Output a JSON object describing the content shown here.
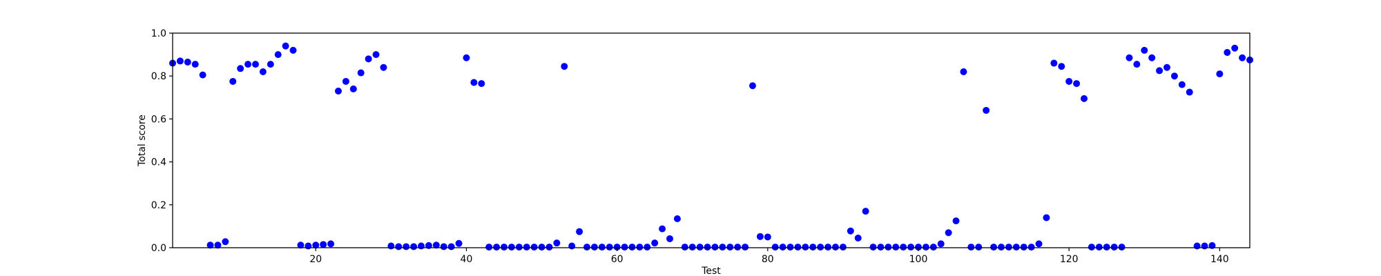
{
  "chart_data": {
    "type": "scatter",
    "title": "",
    "xlabel": "Test",
    "ylabel": "Total score",
    "xlim": [
      1,
      144
    ],
    "ylim": [
      0.0,
      1.0
    ],
    "x_ticks": [
      20,
      40,
      60,
      80,
      100,
      120,
      140
    ],
    "y_ticks": [
      0.0,
      0.2,
      0.4,
      0.6,
      0.8,
      1.0
    ],
    "grid": false,
    "colors": {
      "point": "#0000ff",
      "axis": "#000000"
    },
    "series": [
      {
        "x": [
          1,
          2,
          3,
          4,
          5,
          6,
          7,
          8,
          9,
          10,
          11,
          12,
          13,
          14,
          15,
          16,
          17,
          18,
          19,
          20,
          21,
          22,
          23,
          24,
          25,
          26,
          27,
          28,
          29,
          30,
          31,
          32,
          33,
          34,
          35,
          36,
          37,
          38,
          39,
          40,
          41,
          42,
          43,
          44,
          45,
          46,
          47,
          48,
          49,
          50,
          51,
          52,
          53,
          54,
          55,
          56,
          57,
          58,
          59,
          60,
          61,
          62,
          63,
          64,
          65,
          66,
          67,
          68,
          69,
          70,
          71,
          72,
          73,
          74,
          75,
          76,
          77,
          78,
          79,
          80,
          81,
          82,
          83,
          84,
          85,
          86,
          87,
          88,
          89,
          90,
          91,
          92,
          93,
          94,
          95,
          96,
          97,
          98,
          99,
          100,
          101,
          102,
          103,
          104,
          105,
          106,
          107,
          108,
          109,
          110,
          111,
          112,
          113,
          114,
          115,
          116,
          117,
          118,
          119,
          120,
          121,
          122,
          123,
          124,
          125,
          126,
          127,
          128,
          129,
          130,
          131,
          132,
          133,
          134,
          135,
          136,
          137,
          138,
          139,
          140,
          141,
          142,
          143,
          144
        ],
        "y": [
          0.86,
          0.87,
          0.865,
          0.855,
          0.805,
          0.012,
          0.012,
          0.028,
          0.775,
          0.835,
          0.855,
          0.855,
          0.82,
          0.855,
          0.9,
          0.94,
          0.92,
          0.012,
          0.008,
          0.012,
          0.015,
          0.018,
          0.73,
          0.775,
          0.74,
          0.815,
          0.88,
          0.9,
          0.84,
          0.008,
          0.005,
          0.005,
          0.005,
          0.008,
          0.01,
          0.012,
          0.005,
          0.005,
          0.02,
          0.885,
          0.77,
          0.765,
          0.003,
          0.003,
          0.003,
          0.003,
          0.003,
          0.003,
          0.003,
          0.003,
          0.003,
          0.022,
          0.845,
          0.008,
          0.075,
          0.003,
          0.003,
          0.003,
          0.003,
          0.003,
          0.003,
          0.003,
          0.003,
          0.003,
          0.022,
          0.088,
          0.042,
          0.135,
          0.003,
          0.003,
          0.003,
          0.003,
          0.003,
          0.003,
          0.003,
          0.003,
          0.003,
          0.755,
          0.052,
          0.05,
          0.003,
          0.003,
          0.003,
          0.003,
          0.003,
          0.003,
          0.003,
          0.003,
          0.003,
          0.003,
          0.078,
          0.045,
          0.17,
          0.003,
          0.003,
          0.003,
          0.003,
          0.003,
          0.003,
          0.003,
          0.003,
          0.003,
          0.018,
          0.07,
          0.125,
          0.82,
          0.003,
          0.003,
          0.64,
          0.003,
          0.003,
          0.003,
          0.003,
          0.003,
          0.003,
          0.018,
          0.14,
          0.86,
          0.845,
          0.775,
          0.765,
          0.695,
          0.003,
          0.003,
          0.003,
          0.003,
          0.003,
          0.885,
          0.855,
          0.92,
          0.885,
          0.825,
          0.84,
          0.8,
          0.76,
          0.725,
          0.008,
          0.008,
          0.01,
          0.81,
          0.91,
          0.93,
          0.885,
          0.875
        ]
      }
    ]
  }
}
